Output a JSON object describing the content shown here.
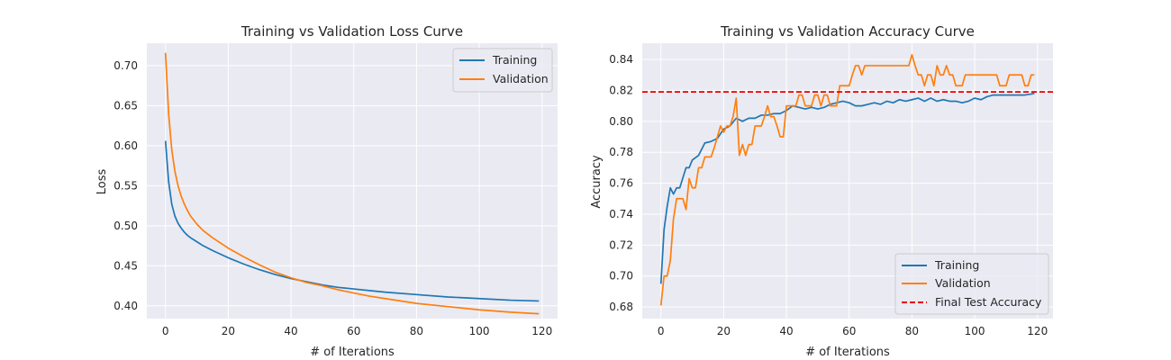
{
  "chart_data": [
    {
      "type": "line",
      "title": "Training vs Validation Loss Curve",
      "xlabel": "# of Iterations",
      "ylabel": "Loss",
      "xlim": [
        -5.95,
        124.95
      ],
      "ylim": [
        0.384,
        0.728
      ],
      "xticks": [
        0,
        20,
        40,
        60,
        80,
        100,
        120
      ],
      "yticks": [
        0.4,
        0.45,
        0.5,
        0.55,
        0.6,
        0.65,
        0.7
      ],
      "ytick_labels": [
        "0.40",
        "0.45",
        "0.50",
        "0.55",
        "0.60",
        "0.65",
        "0.70"
      ],
      "grid": true,
      "legend": "top-right",
      "series": [
        {
          "name": "Training",
          "color": "#1f77b4",
          "x": [
            0,
            1,
            2,
            3,
            4,
            5,
            6,
            7,
            8,
            10,
            12,
            15,
            20,
            25,
            30,
            35,
            40,
            45,
            50,
            55,
            60,
            65,
            70,
            80,
            90,
            100,
            110,
            119
          ],
          "y": [
            0.606,
            0.555,
            0.527,
            0.512,
            0.503,
            0.497,
            0.492,
            0.488,
            0.485,
            0.48,
            0.475,
            0.469,
            0.46,
            0.452,
            0.445,
            0.439,
            0.434,
            0.43,
            0.426,
            0.423,
            0.421,
            0.419,
            0.417,
            0.414,
            0.411,
            0.409,
            0.407,
            0.406
          ]
        },
        {
          "name": "Validation",
          "color": "#ff7f0e",
          "x": [
            0,
            1,
            2,
            3,
            4,
            5,
            6,
            7,
            8,
            10,
            12,
            15,
            20,
            25,
            30,
            35,
            40,
            45,
            50,
            55,
            60,
            65,
            70,
            80,
            90,
            100,
            110,
            119
          ],
          "y": [
            0.716,
            0.64,
            0.595,
            0.568,
            0.55,
            0.537,
            0.527,
            0.519,
            0.512,
            0.502,
            0.494,
            0.485,
            0.472,
            0.461,
            0.451,
            0.442,
            0.435,
            0.429,
            0.425,
            0.42,
            0.416,
            0.412,
            0.409,
            0.403,
            0.399,
            0.395,
            0.392,
            0.39
          ]
        }
      ]
    },
    {
      "type": "line",
      "title": "Training vs Validation Accuracy Curve",
      "xlabel": "# of Iterations",
      "ylabel": "Accuracy",
      "xlim": [
        -5.95,
        124.95
      ],
      "ylim": [
        0.6725,
        0.8505
      ],
      "xticks": [
        0,
        20,
        40,
        60,
        80,
        100,
        120
      ],
      "yticks": [
        0.68,
        0.7,
        0.72,
        0.74,
        0.76,
        0.78,
        0.8,
        0.82,
        0.84
      ],
      "ytick_labels": [
        "0.68",
        "0.70",
        "0.72",
        "0.74",
        "0.76",
        "0.78",
        "0.80",
        "0.82",
        "0.84"
      ],
      "grid": true,
      "legend": "bottom-right",
      "hline": {
        "name": "Final Test Accuracy",
        "y": 0.819,
        "color": "#e60000",
        "style": "dashed"
      },
      "series": [
        {
          "name": "Training",
          "color": "#1f77b4",
          "x": [
            0,
            1,
            2,
            3,
            4,
            5,
            6,
            8,
            9,
            10,
            12,
            14,
            16,
            18,
            20,
            22,
            24,
            26,
            28,
            30,
            32,
            34,
            36,
            38,
            40,
            42,
            44,
            46,
            48,
            50,
            52,
            54,
            56,
            58,
            60,
            62,
            64,
            66,
            68,
            70,
            72,
            74,
            76,
            78,
            80,
            82,
            84,
            86,
            88,
            90,
            92,
            94,
            96,
            98,
            100,
            102,
            104,
            106,
            108,
            110,
            112,
            114,
            116,
            119
          ],
          "y": [
            0.695,
            0.73,
            0.745,
            0.757,
            0.753,
            0.757,
            0.757,
            0.77,
            0.77,
            0.775,
            0.778,
            0.786,
            0.787,
            0.789,
            0.795,
            0.797,
            0.802,
            0.8,
            0.802,
            0.802,
            0.804,
            0.804,
            0.805,
            0.805,
            0.807,
            0.81,
            0.809,
            0.808,
            0.809,
            0.808,
            0.809,
            0.811,
            0.812,
            0.813,
            0.812,
            0.81,
            0.81,
            0.811,
            0.812,
            0.811,
            0.813,
            0.812,
            0.814,
            0.813,
            0.814,
            0.815,
            0.813,
            0.815,
            0.813,
            0.814,
            0.813,
            0.813,
            0.812,
            0.813,
            0.815,
            0.814,
            0.816,
            0.817,
            0.817,
            0.817,
            0.817,
            0.817,
            0.817,
            0.818
          ]
        },
        {
          "name": "Validation",
          "color": "#ff7f0e",
          "x": [
            0,
            1,
            2,
            3,
            4,
            5,
            6,
            7,
            8,
            9,
            10,
            11,
            12,
            13,
            14,
            15,
            16,
            17,
            18,
            19,
            20,
            21,
            22,
            23,
            24,
            25,
            26,
            27,
            28,
            29,
            30,
            31,
            32,
            33,
            34,
            35,
            36,
            37,
            38,
            39,
            40,
            41,
            42,
            43,
            44,
            45,
            46,
            47,
            48,
            49,
            50,
            51,
            52,
            53,
            54,
            55,
            56,
            57,
            58,
            59,
            60,
            61,
            62,
            63,
            64,
            65,
            66,
            70,
            75,
            79,
            80,
            81,
            82,
            83,
            84,
            85,
            86,
            87,
            88,
            89,
            90,
            91,
            92,
            93,
            94,
            95,
            96,
            97,
            98,
            99,
            100,
            101,
            102,
            103,
            104,
            105,
            106,
            107,
            108,
            109,
            110,
            111,
            112,
            113,
            114,
            115,
            116,
            117,
            118,
            119
          ],
          "y": [
            0.681,
            0.7,
            0.7,
            0.71,
            0.737,
            0.75,
            0.75,
            0.75,
            0.743,
            0.763,
            0.757,
            0.757,
            0.77,
            0.77,
            0.777,
            0.777,
            0.777,
            0.783,
            0.79,
            0.797,
            0.793,
            0.797,
            0.797,
            0.803,
            0.815,
            0.778,
            0.785,
            0.778,
            0.785,
            0.785,
            0.797,
            0.797,
            0.797,
            0.803,
            0.81,
            0.803,
            0.803,
            0.797,
            0.79,
            0.79,
            0.81,
            0.81,
            0.81,
            0.81,
            0.817,
            0.817,
            0.81,
            0.81,
            0.81,
            0.817,
            0.817,
            0.81,
            0.817,
            0.817,
            0.81,
            0.81,
            0.81,
            0.823,
            0.823,
            0.823,
            0.823,
            0.83,
            0.836,
            0.836,
            0.83,
            0.836,
            0.836,
            0.836,
            0.836,
            0.836,
            0.843,
            0.836,
            0.83,
            0.83,
            0.823,
            0.83,
            0.83,
            0.823,
            0.836,
            0.83,
            0.83,
            0.836,
            0.83,
            0.83,
            0.823,
            0.823,
            0.823,
            0.83,
            0.83,
            0.83,
            0.83,
            0.83,
            0.83,
            0.83,
            0.83,
            0.83,
            0.83,
            0.83,
            0.823,
            0.823,
            0.823,
            0.83,
            0.83,
            0.83,
            0.83,
            0.83,
            0.823,
            0.823,
            0.83,
            0.83
          ]
        }
      ]
    }
  ]
}
